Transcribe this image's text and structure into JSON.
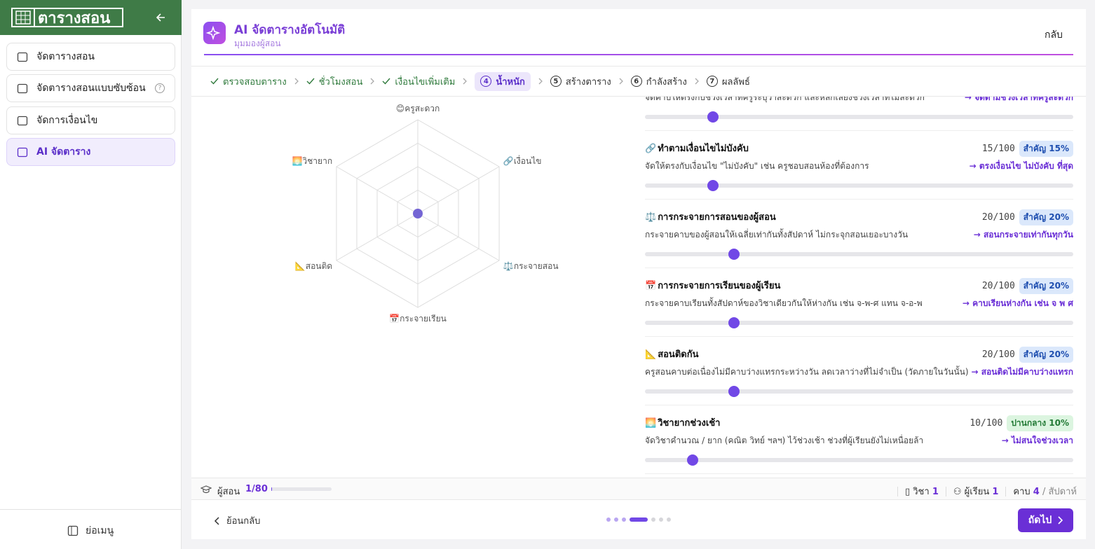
{
  "sidebar": {
    "logo": "ตารางสอน",
    "menu": [
      {
        "label": "จัดตารางสอน"
      },
      {
        "label": "จัดตารางสอนแบบซับซ้อน",
        "help": true
      },
      {
        "label": "จัดการเงื่อนไข"
      },
      {
        "label": "AI จัดตาราง",
        "active": true
      }
    ],
    "collapse": "ย่อเมนู"
  },
  "header": {
    "title": "AI จัดตารางอัตโนมัติ",
    "subtitle": "มุมมองผู้สอน",
    "back": "กลับ"
  },
  "steps": [
    {
      "label": "ตรวจสอบตาราง",
      "status": "done"
    },
    {
      "label": "ชั่วโมงสอน",
      "status": "done"
    },
    {
      "label": "เงื่อนไขเพิ่มเติม",
      "status": "done"
    },
    {
      "number": "4",
      "label": "น้ำหนัก",
      "status": "active"
    },
    {
      "number": "5",
      "label": "สร้างตาราง",
      "status": "todo"
    },
    {
      "number": "6",
      "label": "กำลังสร้าง",
      "status": "todo"
    },
    {
      "number": "7",
      "label": "ผลลัพธ์",
      "status": "todo"
    }
  ],
  "radar": {
    "axes": [
      "😊ครูสะดวก",
      "🔗เงื่อนไข",
      "⚖️กระจายสอน",
      "📅กระจายเรียน",
      "📐สอนติด",
      "🌅วิชายาก"
    ]
  },
  "weight_range": [
    0,
    100
  ],
  "weights": [
    {
      "description": "จัดคาบให้ตรงกับช่วงเวลาที่ครูระบุว่าสะดวก และหลีกเลี่ยงช่วงเวลาที่ไม่สะดวก",
      "effect": "→ จัดตามช่วงเวลาที่ครูสะดวก",
      "value": 15
    },
    {
      "icon": "🔗",
      "title": "ทำตามเงื่อนไขไม่บังคับ",
      "score": "15/100",
      "badge": "สำคัญ 15%",
      "badge_level": "important",
      "description": "จัดให้ตรงกับเงื่อนไข \"ไม่บังคับ\" เช่น ครูชอบสอนห้องที่ต้องการ",
      "effect": "→ ตรงเงื่อนไข ไม่บังคับ ที่สุด",
      "value": 15
    },
    {
      "icon": "⚖️",
      "title": "การกระจายการสอนของผู้สอน",
      "score": "20/100",
      "badge": "สำคัญ 20%",
      "badge_level": "important",
      "description": "กระจายคาบของผู้สอนให้เฉลี่ยเท่ากันทั้งสัปดาห์ ไม่กระจุกสอนเยอะบางวัน",
      "effect": "→ สอนกระจายเท่ากันทุกวัน",
      "value": 20
    },
    {
      "icon": "📅",
      "title": "การกระจายการเรียนของผู้เรียน",
      "score": "20/100",
      "badge": "สำคัญ 20%",
      "badge_level": "important",
      "description": "กระจายคาบเรียนทั้งสัปดาห์ของวิชาเดียวกันให้ห่างกัน เช่น จ-พ-ศ แทน จ-อ-พ",
      "effect": "→ คาบเรียนห่างกัน เช่น จ พ ศ",
      "value": 20
    },
    {
      "icon": "📐",
      "title": "สอนติดกัน",
      "score": "20/100",
      "badge": "สำคัญ 20%",
      "badge_level": "important",
      "description": "ครูสอนคาบต่อเนื่องไม่มีคาบว่างแทรกระหว่างวัน ลดเวลาว่างที่ไม่จำเป็น (วัดภายในวันนั้น)",
      "effect": "→ สอนติดไม่มีคาบว่างแทรก",
      "value": 20
    },
    {
      "icon": "🌅",
      "title": "วิชายากช่วงเช้า",
      "score": "10/100",
      "badge": "ปานกลาง 10%",
      "badge_level": "medium",
      "description": "จัดวิชาคำนวณ / ยาก (คณิต วิทย์ ฯลฯ) ไว้ช่วงเช้า ช่วงที่ผู้เรียนยังไม่เหนื่อยล้า",
      "effect": "→ ไม่สนใจช่วงเวลา",
      "value": 10
    }
  ],
  "status": {
    "teachers": {
      "label": "ผู้สอน",
      "count": "1/80",
      "done": 1,
      "total": 80
    },
    "subjects": {
      "label": "วิชา",
      "count": "1"
    },
    "students": {
      "label": "ผู้เรียน",
      "count": "1"
    },
    "periods": {
      "label": "คาบ",
      "count": "4",
      "unit": "/ สัปดาห์"
    }
  },
  "footer": {
    "back": "ย้อนกลับ",
    "next": "ถัดไป"
  }
}
